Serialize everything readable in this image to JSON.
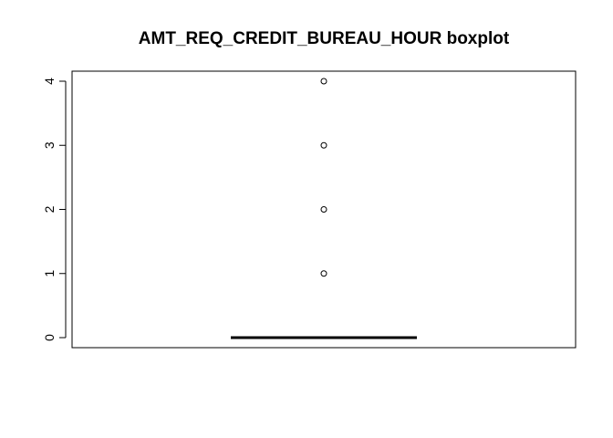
{
  "chart_data": {
    "type": "boxplot",
    "title": "AMT_REQ_CREDIT_BUREAU_HOUR boxplot",
    "xlabel": "",
    "ylabel": "",
    "ylim": [
      -0.15,
      4.15
    ],
    "yticks": [
      0,
      1,
      2,
      3,
      4
    ],
    "series": [
      {
        "min": 0,
        "q1": 0,
        "median": 0,
        "q3": 0,
        "max": 0,
        "outliers": [
          1,
          2,
          3,
          4
        ]
      }
    ],
    "grid": false,
    "legend": "none"
  }
}
